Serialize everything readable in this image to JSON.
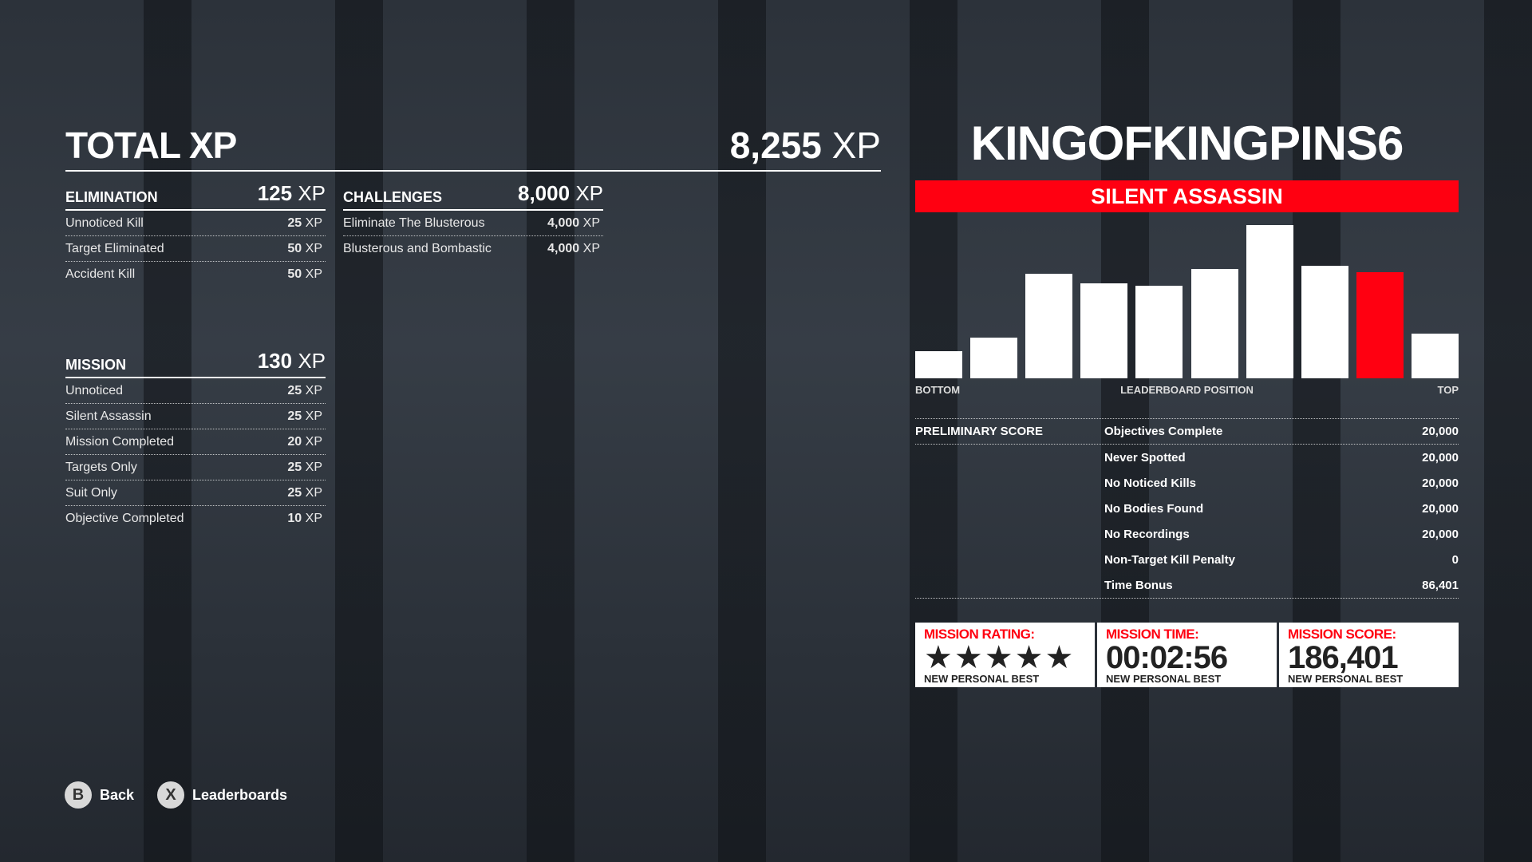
{
  "total": {
    "label": "TOTAL XP",
    "value": "8,255",
    "unit": "XP"
  },
  "elimination": {
    "title": "ELIMINATION",
    "value": "125",
    "unit": "XP",
    "items": [
      {
        "label": "Unnoticed Kill",
        "value": "25",
        "unit": "XP"
      },
      {
        "label": "Target Eliminated",
        "value": "50",
        "unit": "XP"
      },
      {
        "label": "Accident Kill",
        "value": "50",
        "unit": "XP"
      }
    ]
  },
  "challenges": {
    "title": "CHALLENGES",
    "value": "8,000",
    "unit": "XP",
    "items": [
      {
        "label": "Eliminate The Blusterous",
        "value": "4,000",
        "unit": "XP"
      },
      {
        "label": "Blusterous and Bombastic",
        "value": "4,000",
        "unit": "XP"
      }
    ]
  },
  "mission": {
    "title": "MISSION",
    "value": "130",
    "unit": "XP",
    "items": [
      {
        "label": "Unnoticed",
        "value": "25",
        "unit": "XP"
      },
      {
        "label": "Silent Assassin",
        "value": "25",
        "unit": "XP"
      },
      {
        "label": "Mission Completed",
        "value": "20",
        "unit": "XP"
      },
      {
        "label": "Targets Only",
        "value": "25",
        "unit": "XP"
      },
      {
        "label": "Suit Only",
        "value": "25",
        "unit": "XP"
      },
      {
        "label": "Objective Completed",
        "value": "10",
        "unit": "XP"
      }
    ]
  },
  "player": {
    "name": "KINGOFKINGPINS6",
    "rating_title": "SILENT ASSASSIN"
  },
  "leaderboard": {
    "label_left": "BOTTOM",
    "label_center": "LEADERBOARD POSITION",
    "label_right": "TOP",
    "relative_heights": [
      28,
      42,
      107,
      97,
      95,
      112,
      157,
      115,
      109,
      46
    ],
    "player_bin_index": 8,
    "highlight_color": "#ff0011",
    "bar_color": "#ffffff"
  },
  "preliminary": {
    "title": "PRELIMINARY SCORE",
    "items": [
      {
        "label": "Objectives Complete",
        "value": "20,000"
      },
      {
        "label": "Never Spotted",
        "value": "20,000"
      },
      {
        "label": "No Noticed Kills",
        "value": "20,000"
      },
      {
        "label": "No Bodies Found",
        "value": "20,000"
      },
      {
        "label": "No Recordings",
        "value": "20,000"
      },
      {
        "label": "Non-Target Kill Penalty",
        "value": "0"
      },
      {
        "label": "Time Bonus",
        "value": "86,401"
      }
    ]
  },
  "results": {
    "rating": {
      "title": "MISSION RATING:",
      "stars": 5,
      "stars_text": "★★★★★",
      "sub": "NEW PERSONAL BEST"
    },
    "time": {
      "title": "MISSION TIME:",
      "value": "00:02:56",
      "sub": "NEW PERSONAL BEST"
    },
    "score": {
      "title": "MISSION SCORE:",
      "value": "186,401",
      "sub": "NEW PERSONAL BEST"
    }
  },
  "buttons": {
    "back": {
      "key": "B",
      "label": "Back"
    },
    "leaderboards": {
      "key": "X",
      "label": "Leaderboards"
    }
  }
}
